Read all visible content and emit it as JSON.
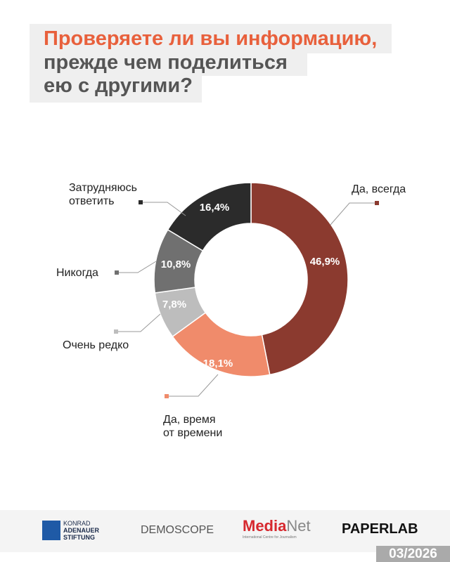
{
  "title": {
    "line1": "Проверяете ли вы информацию,",
    "line2": "прежде чем поделиться",
    "line3": "ею с другими?"
  },
  "chart_data": {
    "type": "pie",
    "donut": true,
    "start": "top, clockwise",
    "slices": [
      {
        "label_lines": [
          "Да, всегда"
        ],
        "value": 46.9,
        "value_label": "46,9%",
        "color": "#8b3a2f"
      },
      {
        "label_lines": [
          "Да, время",
          "от времени"
        ],
        "value": 18.1,
        "value_label": "18,1%",
        "color": "#f08b6b"
      },
      {
        "label_lines": [
          "Очень редко"
        ],
        "value": 7.8,
        "value_label": "7,8%",
        "color": "#bdbdbd"
      },
      {
        "label_lines": [
          "Никогда"
        ],
        "value": 10.8,
        "value_label": "10,8%",
        "color": "#707070"
      },
      {
        "label_lines": [
          "Затрудняюсь",
          "ответить"
        ],
        "value": 16.4,
        "value_label": "16,4%",
        "color": "#2b2b2b"
      }
    ]
  },
  "footer": {
    "logos": {
      "kas": [
        "KONRAD",
        "ADENAUER",
        "STIFTUNG"
      ],
      "demoscope": "DEMOSCOPE",
      "medianet": {
        "media": "Media",
        "net": "Net",
        "tagline": "International Centre for Journalism"
      },
      "paperlab": "PAPERLAB"
    },
    "date": "03/2026"
  }
}
